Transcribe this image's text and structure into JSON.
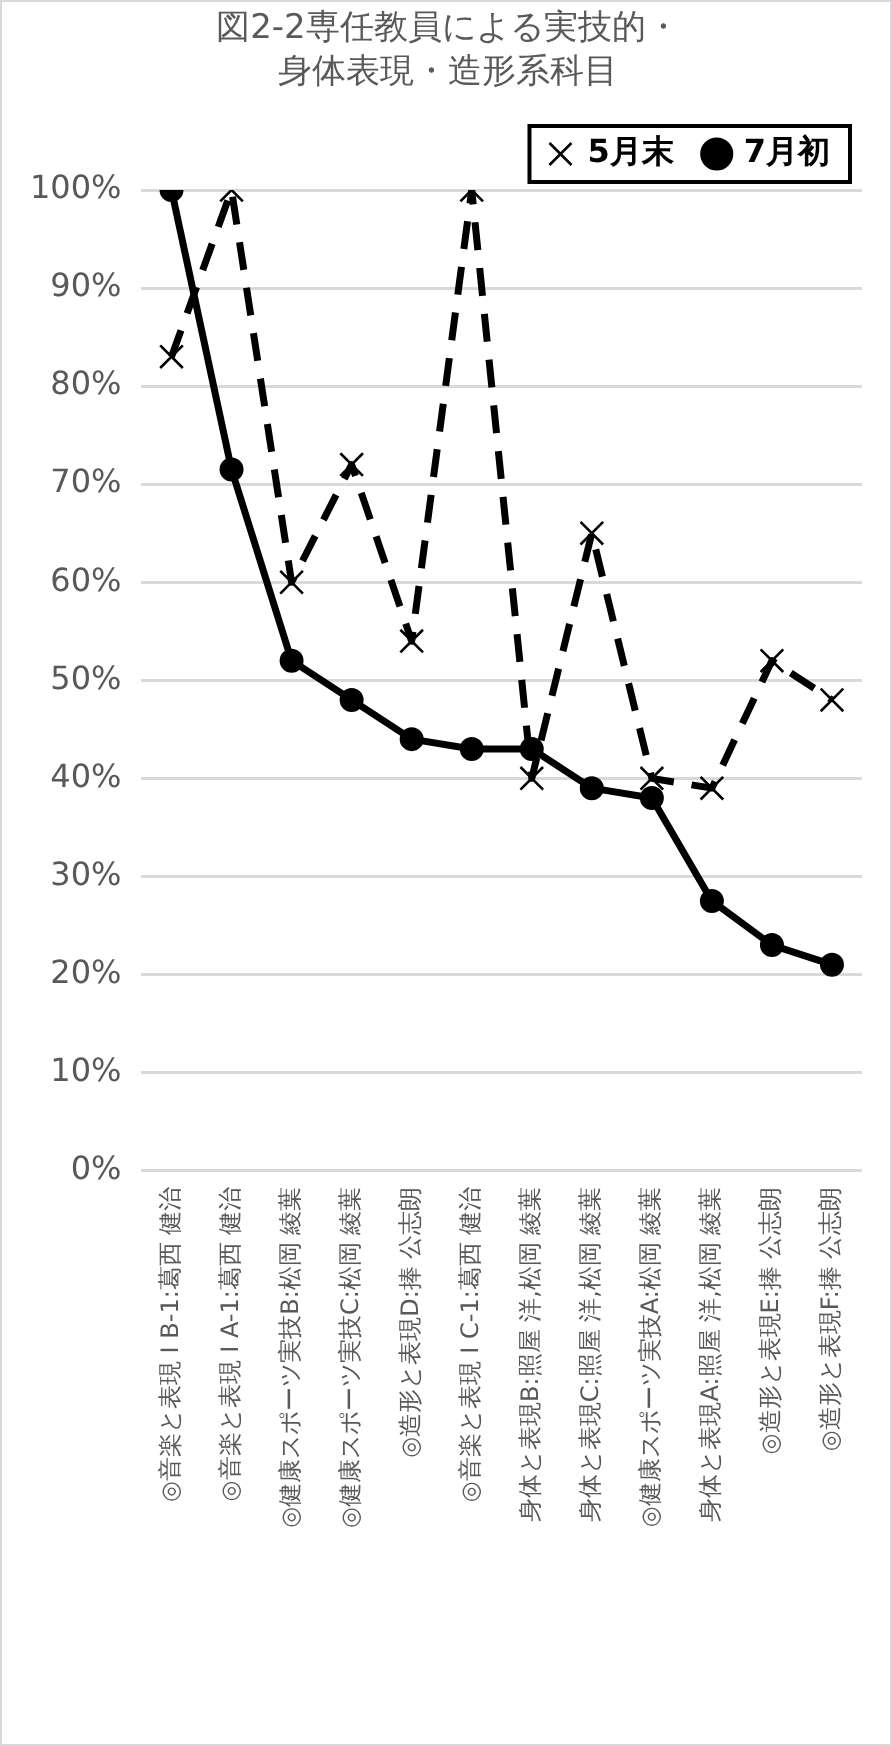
{
  "chart_data": {
    "type": "line",
    "title": "図2-2専任教員による実技的・身体表現・造形系科目",
    "categories": [
      "◎音楽と表現 I B-1:葛西 健治",
      "◎音楽と表現 I A-1:葛西 健治",
      "◎健康スポーツ実技B:松岡 綾葉",
      "◎健康スポーツ実技C:松岡 綾葉",
      "◎造形と表現D:捧 公志朗",
      "◎音楽と表現 I C-1:葛西 健治",
      "身体と表現B:照屋 洋,松岡 綾葉",
      "身体と表現C:照屋 洋,松岡 綾葉",
      "◎健康スポーツ実技A:松岡 綾葉",
      "身体と表現A:照屋 洋,松岡 綾葉",
      "◎造形と表現E:捧 公志朗",
      "◎造形と表現F:捧 公志朗"
    ],
    "series": [
      {
        "name": "5月末",
        "color": "#000000",
        "marker": "cross",
        "line_style": "dashed",
        "values": [
          83,
          100,
          60,
          72,
          54,
          100,
          40,
          65,
          40,
          39,
          52,
          48
        ]
      },
      {
        "name": "7月初",
        "color": "#000000",
        "marker": "circle",
        "line_style": "solid",
        "values": [
          100,
          71.5,
          52,
          48,
          44,
          43,
          43,
          39,
          38,
          27.5,
          23,
          21
        ]
      }
    ],
    "ylim": [
      0,
      100
    ],
    "yticks": [
      {
        "value": 0,
        "label": "0%"
      },
      {
        "value": 10,
        "label": "10%"
      },
      {
        "value": 20,
        "label": "20%"
      },
      {
        "value": 30,
        "label": "30%"
      },
      {
        "value": 40,
        "label": "40%"
      },
      {
        "value": 50,
        "label": "50%"
      },
      {
        "value": 60,
        "label": "60%"
      },
      {
        "value": 70,
        "label": "70%"
      },
      {
        "value": 80,
        "label": "80%"
      },
      {
        "value": 90,
        "label": "90%"
      },
      {
        "value": 100,
        "label": "100%"
      }
    ],
    "grid": "y",
    "legend": "top right"
  }
}
